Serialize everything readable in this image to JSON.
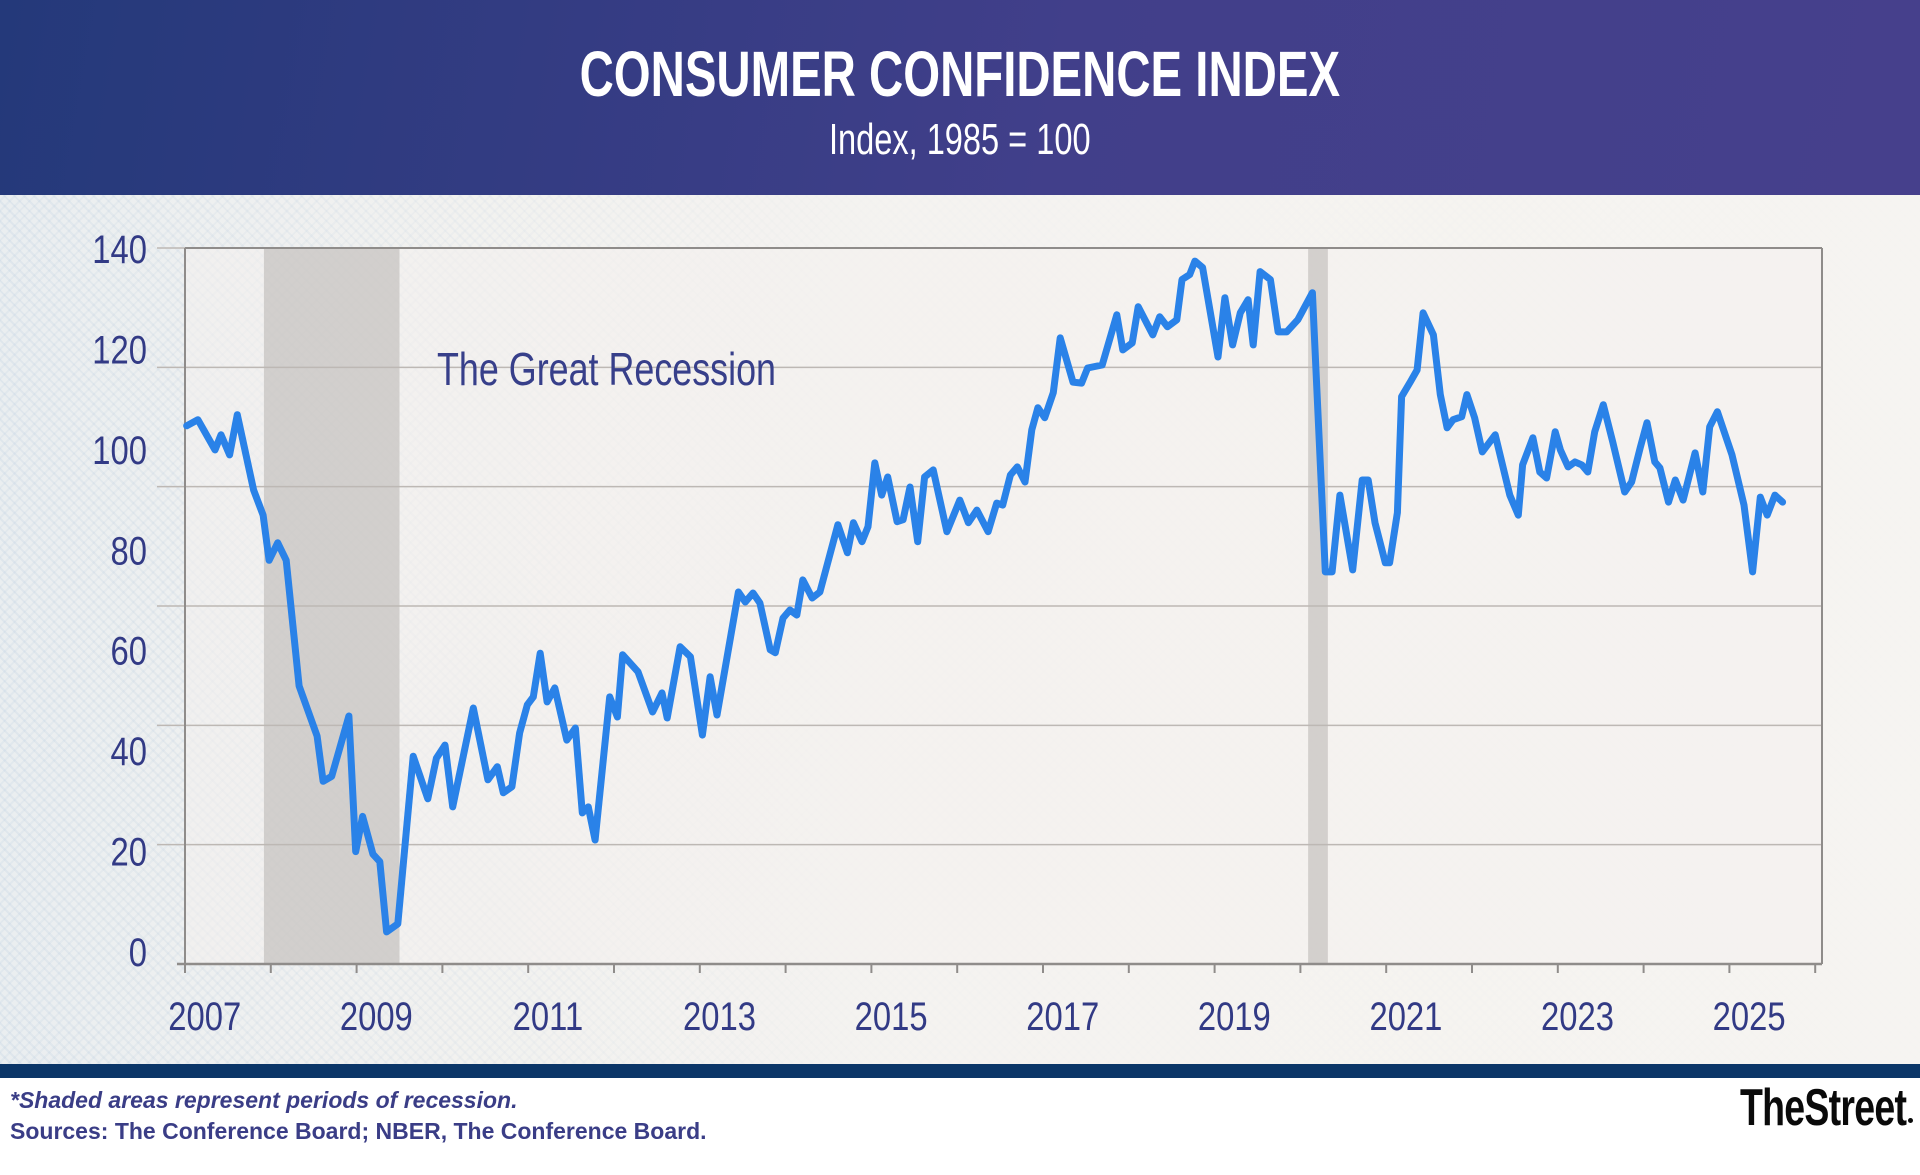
{
  "header": {
    "title": "CONSUMER CONFIDENCE INDEX",
    "subtitle": "Index, 1985 = 100"
  },
  "footer": {
    "footnote": "*Shaded areas represent periods of recession.",
    "sources": "Sources: The Conference Board; NBER, The Conference Board.",
    "logo": "TheStreet"
  },
  "colors": {
    "line": "#2a82e8",
    "header": "#3a3d86",
    "text": "#323a85",
    "recession_shade": "#bdb9b6",
    "footer_band": "#0b3668"
  },
  "chart_data": {
    "type": "line",
    "title": "CONSUMER CONFIDENCE INDEX",
    "subtitle": "Index, 1985 = 100",
    "xlabel": "",
    "ylabel": "",
    "xlim": [
      2007,
      2026.1
    ],
    "ylim": [
      0,
      140
    ],
    "y_ticks": [
      0,
      20,
      40,
      60,
      80,
      100,
      120,
      140
    ],
    "y_tick_labels": [
      "0",
      "20",
      "40",
      "60",
      "80",
      "100",
      "120",
      "140"
    ],
    "x_ticks": [
      2007,
      2009,
      2011,
      2013,
      2015,
      2017,
      2019,
      2021,
      2023,
      2025
    ],
    "x_tick_labels": [
      "2007",
      "2009",
      "2011",
      "2013",
      "2015",
      "2017",
      "2019",
      "2021",
      "2023",
      "2025"
    ],
    "grid": true,
    "legend": "none",
    "annotations": [
      {
        "text": "The Great Recession",
        "x": 2010.0,
        "y": 117
      }
    ],
    "recessions": [
      {
        "name": "The Great Recession",
        "start": 2007.92,
        "end": 2009.5
      },
      {
        "name": "COVID-19 recession",
        "start": 2020.09,
        "end": 2020.32
      }
    ],
    "series": [
      {
        "name": "Consumer Confidence Index",
        "points": [
          [
            2007.02,
            104.8
          ],
          [
            2007.15,
            106.0
          ],
          [
            2007.35,
            100.0
          ],
          [
            2007.42,
            103.0
          ],
          [
            2007.52,
            99.0
          ],
          [
            2007.61,
            107.0
          ],
          [
            2007.8,
            92.0
          ],
          [
            2007.91,
            87.0
          ],
          [
            2007.98,
            78.0
          ],
          [
            2008.08,
            81.5
          ],
          [
            2008.18,
            78.0
          ],
          [
            2008.33,
            53.0
          ],
          [
            2008.54,
            43.0
          ],
          [
            2008.61,
            34.0
          ],
          [
            2008.71,
            35.0
          ],
          [
            2008.91,
            47.0
          ],
          [
            2008.99,
            20.0
          ],
          [
            2009.07,
            27.0
          ],
          [
            2009.19,
            19.5
          ],
          [
            2009.27,
            18.0
          ],
          [
            2009.35,
            4.0
          ],
          [
            2009.48,
            5.6
          ],
          [
            2009.66,
            39.0
          ],
          [
            2009.83,
            30.5
          ],
          [
            2009.93,
            38.6
          ],
          [
            2010.03,
            41.2
          ],
          [
            2010.12,
            28.9
          ],
          [
            2010.36,
            48.6
          ],
          [
            2010.53,
            34.3
          ],
          [
            2010.64,
            36.9
          ],
          [
            2010.71,
            31.7
          ],
          [
            2010.81,
            32.9
          ],
          [
            2010.9,
            43.6
          ],
          [
            2010.99,
            49.2
          ],
          [
            2011.06,
            50.8
          ],
          [
            2011.14,
            59.5
          ],
          [
            2011.22,
            49.8
          ],
          [
            2011.31,
            52.6
          ],
          [
            2011.45,
            42.2
          ],
          [
            2011.55,
            44.6
          ],
          [
            2011.63,
            27.7
          ],
          [
            2011.7,
            28.9
          ],
          [
            2011.78,
            22.3
          ],
          [
            2011.95,
            50.8
          ],
          [
            2012.04,
            46.8
          ],
          [
            2012.1,
            59.2
          ],
          [
            2012.28,
            55.8
          ],
          [
            2012.45,
            47.8
          ],
          [
            2012.56,
            51.6
          ],
          [
            2012.62,
            46.6
          ],
          [
            2012.77,
            60.8
          ],
          [
            2012.89,
            58.8
          ],
          [
            2013.03,
            43.2
          ],
          [
            2013.12,
            54.8
          ],
          [
            2013.2,
            47.2
          ],
          [
            2013.45,
            71.7
          ],
          [
            2013.53,
            69.7
          ],
          [
            2013.62,
            71.5
          ],
          [
            2013.7,
            69.5
          ],
          [
            2013.82,
            60.2
          ],
          [
            2013.88,
            59.6
          ],
          [
            2013.97,
            66.5
          ],
          [
            2014.05,
            68.1
          ],
          [
            2014.13,
            67.1
          ],
          [
            2014.2,
            74.1
          ],
          [
            2014.31,
            70.5
          ],
          [
            2014.4,
            71.7
          ],
          [
            2014.61,
            85.1
          ],
          [
            2014.72,
            79.5
          ],
          [
            2014.79,
            85.5
          ],
          [
            2014.89,
            81.7
          ],
          [
            2014.96,
            84.7
          ],
          [
            2015.04,
            97.4
          ],
          [
            2015.12,
            91.0
          ],
          [
            2015.19,
            94.6
          ],
          [
            2015.3,
            85.7
          ],
          [
            2015.37,
            86.1
          ],
          [
            2015.45,
            92.6
          ],
          [
            2015.54,
            81.7
          ],
          [
            2015.62,
            94.6
          ],
          [
            2015.72,
            96.0
          ],
          [
            2015.88,
            83.7
          ],
          [
            2016.03,
            90.0
          ],
          [
            2016.13,
            85.5
          ],
          [
            2016.23,
            88.0
          ],
          [
            2016.36,
            83.7
          ],
          [
            2016.46,
            89.4
          ],
          [
            2016.53,
            89.0
          ],
          [
            2016.62,
            95.0
          ],
          [
            2016.7,
            96.6
          ],
          [
            2016.79,
            93.6
          ],
          [
            2016.87,
            104.0
          ],
          [
            2016.94,
            108.4
          ],
          [
            2017.02,
            106.4
          ],
          [
            2017.12,
            111.4
          ],
          [
            2017.2,
            122.3
          ],
          [
            2017.35,
            113.5
          ],
          [
            2017.45,
            113.3
          ],
          [
            2017.52,
            116.3
          ],
          [
            2017.69,
            116.9
          ],
          [
            2017.86,
            126.9
          ],
          [
            2017.93,
            119.9
          ],
          [
            2018.04,
            121.3
          ],
          [
            2018.11,
            128.5
          ],
          [
            2018.28,
            122.9
          ],
          [
            2018.36,
            126.5
          ],
          [
            2018.45,
            124.5
          ],
          [
            2018.56,
            125.9
          ],
          [
            2018.62,
            133.9
          ],
          [
            2018.71,
            134.9
          ],
          [
            2018.77,
            137.6
          ],
          [
            2018.86,
            136.3
          ],
          [
            2019.04,
            118.5
          ],
          [
            2019.12,
            130.3
          ],
          [
            2019.21,
            120.9
          ],
          [
            2019.3,
            127.3
          ],
          [
            2019.39,
            129.9
          ],
          [
            2019.45,
            120.9
          ],
          [
            2019.53,
            135.5
          ],
          [
            2019.65,
            133.9
          ],
          [
            2019.74,
            123.5
          ],
          [
            2019.84,
            123.5
          ],
          [
            2019.97,
            125.9
          ],
          [
            2020.14,
            131.3
          ],
          [
            2020.29,
            75.7
          ],
          [
            2020.37,
            75.7
          ],
          [
            2020.46,
            91.0
          ],
          [
            2020.61,
            76.1
          ],
          [
            2020.72,
            94.0
          ],
          [
            2020.79,
            94.0
          ],
          [
            2020.87,
            85.5
          ],
          [
            2020.99,
            77.5
          ],
          [
            2021.04,
            77.5
          ],
          [
            2021.13,
            87.5
          ],
          [
            2021.18,
            110.6
          ],
          [
            2021.28,
            113.5
          ],
          [
            2021.36,
            115.9
          ],
          [
            2021.43,
            127.3
          ],
          [
            2021.55,
            122.9
          ],
          [
            2021.63,
            111.0
          ],
          [
            2021.71,
            104.4
          ],
          [
            2021.78,
            106.0
          ],
          [
            2021.88,
            106.6
          ],
          [
            2021.94,
            111.0
          ],
          [
            2022.03,
            106.4
          ],
          [
            2022.12,
            99.6
          ],
          [
            2022.27,
            103.0
          ],
          [
            2022.44,
            91.0
          ],
          [
            2022.54,
            87.0
          ],
          [
            2022.59,
            97.0
          ],
          [
            2022.71,
            102.4
          ],
          [
            2022.79,
            95.6
          ],
          [
            2022.87,
            94.4
          ],
          [
            2022.97,
            103.6
          ],
          [
            2023.03,
            100.0
          ],
          [
            2023.12,
            96.6
          ],
          [
            2023.2,
            97.6
          ],
          [
            2023.28,
            97.0
          ],
          [
            2023.35,
            95.6
          ],
          [
            2023.43,
            103.6
          ],
          [
            2023.53,
            109.0
          ],
          [
            2023.64,
            101.6
          ],
          [
            2023.78,
            91.6
          ],
          [
            2023.86,
            93.6
          ],
          [
            2023.96,
            100.4
          ],
          [
            2024.04,
            105.4
          ],
          [
            2024.13,
            97.6
          ],
          [
            2024.19,
            96.4
          ],
          [
            2024.29,
            89.6
          ],
          [
            2024.37,
            94.0
          ],
          [
            2024.46,
            90.0
          ],
          [
            2024.6,
            99.4
          ],
          [
            2024.69,
            91.6
          ],
          [
            2024.77,
            104.6
          ],
          [
            2024.86,
            107.6
          ],
          [
            2025.03,
            99.0
          ],
          [
            2025.17,
            89.0
          ],
          [
            2025.27,
            75.7
          ],
          [
            2025.36,
            90.6
          ],
          [
            2025.44,
            87.0
          ],
          [
            2025.53,
            91.0
          ],
          [
            2025.62,
            89.6
          ]
        ]
      }
    ]
  }
}
